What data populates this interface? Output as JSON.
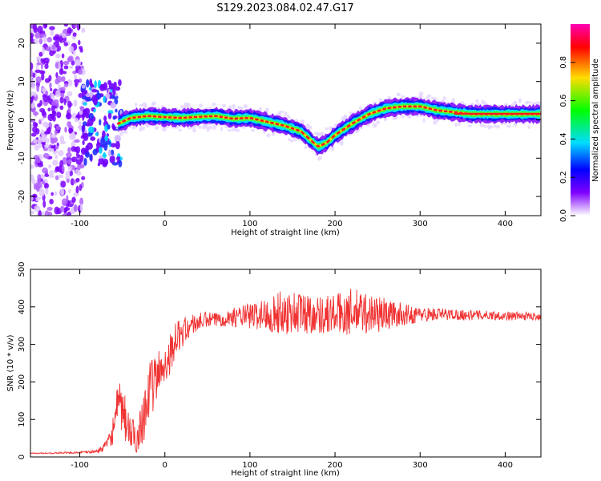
{
  "figure": {
    "title": "S129.2023.084.02.47.G17"
  },
  "chart_data": [
    {
      "type": "heatmap",
      "xlabel": "Height of straight line (km)",
      "ylabel": "Frequency (Hz)",
      "xlim": [
        -158,
        442
      ],
      "ylim": [
        -25,
        25
      ],
      "xticks": [
        -100,
        0,
        100,
        200,
        300,
        400
      ],
      "yticks": [
        -20,
        -10,
        0,
        10,
        20
      ],
      "colorbar": {
        "label": "Normalized spectral amplitude",
        "range": [
          0,
          1
        ],
        "ticks": [
          0.0,
          0.2,
          0.4,
          0.6,
          0.8
        ],
        "colormap": [
          "#ff00b4",
          "#ff0000",
          "#ffdc00",
          "#00ff00",
          "#00dcff",
          "#0000ff",
          "#8000ff",
          "#ffffff"
        ]
      },
      "ridge": {
        "x": [
          -55,
          -40,
          -20,
          0,
          20,
          40,
          60,
          80,
          100,
          120,
          140,
          160,
          170,
          180,
          190,
          200,
          220,
          240,
          260,
          280,
          300,
          320,
          340,
          360,
          380,
          400,
          420,
          442
        ],
        "y": [
          -1,
          0.5,
          1,
          0.7,
          0.5,
          0.8,
          1,
          0.3,
          0.5,
          -0.5,
          -1.5,
          -3,
          -5,
          -7,
          -6,
          -4,
          -1,
          1.5,
          3,
          3.5,
          3.5,
          2.5,
          2,
          1.5,
          1.5,
          1.5,
          1.5,
          1.5
        ]
      },
      "grid": false
    },
    {
      "type": "line",
      "xlabel": "Height of straight line (km)",
      "ylabel": "SNR (10 * v/v)",
      "xlim": [
        -158,
        442
      ],
      "ylim": [
        0,
        500
      ],
      "xticks": [
        -100,
        0,
        100,
        200,
        300,
        400
      ],
      "yticks": [
        0,
        100,
        200,
        300,
        400,
        500
      ],
      "series": [
        {
          "color": "#f03232",
          "x": [
            -158,
            -140,
            -120,
            -100,
            -90,
            -80,
            -75,
            -70,
            -65,
            -60,
            -55,
            -50,
            -45,
            -40,
            -35,
            -30,
            -25,
            -20,
            -15,
            -10,
            -5,
            0,
            5,
            10,
            15,
            20,
            25,
            30,
            35,
            40,
            50,
            60,
            70,
            80,
            90,
            100,
            110,
            120,
            130,
            140,
            150,
            160,
            170,
            180,
            190,
            200,
            210,
            220,
            230,
            240,
            250,
            260,
            270,
            280,
            290,
            300,
            320,
            340,
            360,
            380,
            400,
            420,
            442
          ],
          "y": [
            10,
            10,
            11,
            12,
            13,
            15,
            20,
            30,
            45,
            80,
            130,
            120,
            90,
            60,
            50,
            70,
            120,
            160,
            190,
            210,
            230,
            250,
            270,
            300,
            320,
            330,
            340,
            350,
            355,
            360,
            365,
            365,
            370,
            372,
            375,
            375,
            378,
            380,
            382,
            385,
            385,
            385,
            382,
            380,
            380,
            380,
            385,
            385,
            385,
            383,
            382,
            380,
            380,
            380,
            378,
            380,
            380,
            380,
            378,
            378,
            376,
            375,
            375
          ],
          "noise": [
            1,
            2,
            2,
            3,
            3,
            5,
            8,
            12,
            20,
            45,
            70,
            70,
            60,
            50,
            45,
            50,
            80,
            80,
            75,
            70,
            65,
            60,
            55,
            50,
            45,
            40,
            35,
            30,
            28,
            25,
            22,
            20,
            22,
            25,
            30,
            35,
            40,
            45,
            55,
            60,
            60,
            60,
            55,
            50,
            55,
            55,
            60,
            65,
            60,
            55,
            50,
            45,
            35,
            30,
            25,
            20,
            18,
            15,
            14,
            12,
            12,
            11,
            10
          ]
        }
      ],
      "grid": false
    }
  ]
}
